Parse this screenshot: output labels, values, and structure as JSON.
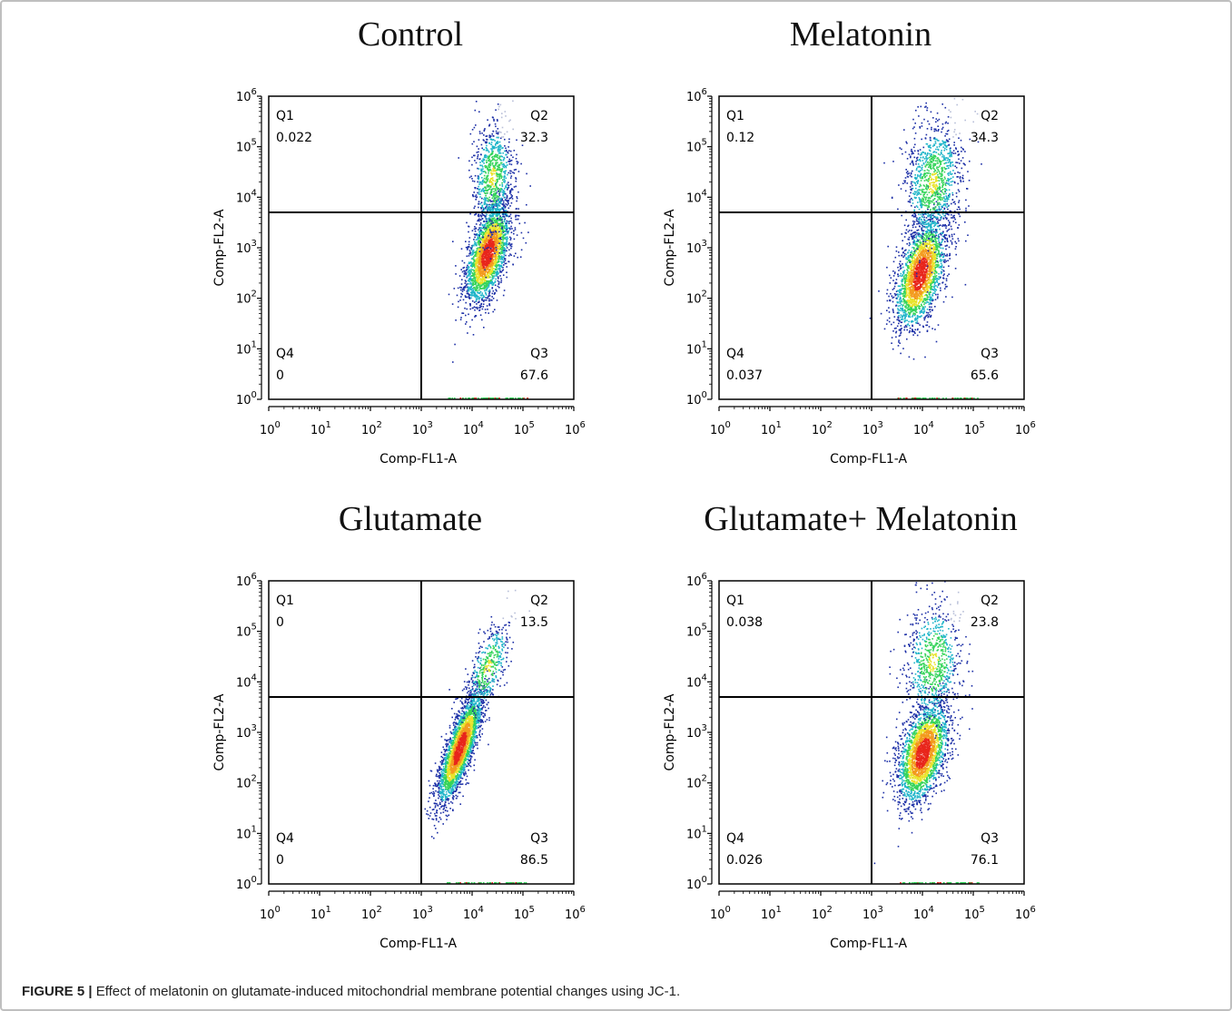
{
  "caption": {
    "label": "FIGURE 5 |",
    "text": "Effect of melatonin on glutamate-induced mitochondrial membrane potential changes using JC-1."
  },
  "chart_data": [
    {
      "type": "scatter",
      "title": "Control",
      "xlabel": "Comp-FL1-A",
      "ylabel": "Comp-FL2-A",
      "x_scale": "log10",
      "y_scale": "log10",
      "xlim": [
        0,
        6
      ],
      "ylim": [
        0,
        6
      ],
      "x_ticks": [
        "10^0",
        "10^1",
        "10^2",
        "10^3",
        "10^4",
        "10^5",
        "10^6"
      ],
      "y_ticks": [
        "10^0",
        "10^1",
        "10^2",
        "10^3",
        "10^4",
        "10^5",
        "10^6"
      ],
      "gate": {
        "x": 3,
        "y": 3.7
      },
      "quadrants": [
        {
          "name": "Q1",
          "value": "0.022"
        },
        {
          "name": "Q2",
          "value": "32.3"
        },
        {
          "name": "Q3",
          "value": "67.6"
        },
        {
          "name": "Q4",
          "value": "0"
        }
      ],
      "clusters": [
        {
          "cx": 4.3,
          "cy": 2.9,
          "sx": 0.22,
          "sy": 0.5,
          "rho": 0.55,
          "n": 2600
        },
        {
          "cx": 4.4,
          "cy": 4.4,
          "sx": 0.2,
          "sy": 0.55,
          "rho": 0.1,
          "n": 900
        }
      ]
    },
    {
      "type": "scatter",
      "title": "Melatonin",
      "xlabel": "Comp-FL1-A",
      "ylabel": "Comp-FL2-A",
      "x_scale": "log10",
      "y_scale": "log10",
      "xlim": [
        0,
        6
      ],
      "ylim": [
        0,
        6
      ],
      "x_ticks": [
        "10^0",
        "10^1",
        "10^2",
        "10^3",
        "10^4",
        "10^5",
        "10^6"
      ],
      "y_ticks": [
        "10^0",
        "10^1",
        "10^2",
        "10^3",
        "10^4",
        "10^5",
        "10^6"
      ],
      "gate": {
        "x": 3,
        "y": 3.7
      },
      "quadrants": [
        {
          "name": "Q1",
          "value": "0.12"
        },
        {
          "name": "Q2",
          "value": "34.3"
        },
        {
          "name": "Q3",
          "value": "65.6"
        },
        {
          "name": "Q4",
          "value": "0.037"
        }
      ],
      "clusters": [
        {
          "cx": 3.95,
          "cy": 2.5,
          "sx": 0.25,
          "sy": 0.55,
          "rho": 0.5,
          "n": 2400
        },
        {
          "cx": 4.2,
          "cy": 4.3,
          "sx": 0.28,
          "sy": 0.6,
          "rho": 0.2,
          "n": 1100
        }
      ]
    },
    {
      "type": "scatter",
      "title": "Glutamate",
      "xlabel": "Comp-FL1-A",
      "ylabel": "Comp-FL2-A",
      "x_scale": "log10",
      "y_scale": "log10",
      "xlim": [
        0,
        6
      ],
      "ylim": [
        0,
        6
      ],
      "x_ticks": [
        "10^0",
        "10^1",
        "10^2",
        "10^3",
        "10^4",
        "10^5",
        "10^6"
      ],
      "y_ticks": [
        "10^0",
        "10^1",
        "10^2",
        "10^3",
        "10^4",
        "10^5",
        "10^6"
      ],
      "gate": {
        "x": 3,
        "y": 3.7
      },
      "quadrants": [
        {
          "name": "Q1",
          "value": "0"
        },
        {
          "name": "Q2",
          "value": "13.5"
        },
        {
          "name": "Q3",
          "value": "86.5"
        },
        {
          "name": "Q4",
          "value": "0"
        }
      ],
      "clusters": [
        {
          "cx": 3.75,
          "cy": 2.7,
          "sx": 0.22,
          "sy": 0.55,
          "rho": 0.8,
          "n": 3000
        },
        {
          "cx": 4.3,
          "cy": 4.3,
          "sx": 0.22,
          "sy": 0.45,
          "rho": 0.6,
          "n": 450
        }
      ]
    },
    {
      "type": "scatter",
      "title": "Glutamate+ Melatonin",
      "xlabel": "Comp-FL1-A",
      "ylabel": "Comp-FL2-A",
      "x_scale": "log10",
      "y_scale": "log10",
      "xlim": [
        0,
        6
      ],
      "ylim": [
        0,
        6
      ],
      "x_ticks": [
        "10^0",
        "10^1",
        "10^2",
        "10^3",
        "10^4",
        "10^5",
        "10^6"
      ],
      "y_ticks": [
        "10^0",
        "10^1",
        "10^2",
        "10^3",
        "10^4",
        "10^5",
        "10^6"
      ],
      "gate": {
        "x": 3,
        "y": 3.7
      },
      "quadrants": [
        {
          "name": "Q1",
          "value": "0.038"
        },
        {
          "name": "Q2",
          "value": "23.8"
        },
        {
          "name": "Q3",
          "value": "76.1"
        },
        {
          "name": "Q4",
          "value": "0.026"
        }
      ],
      "clusters": [
        {
          "cx": 4.0,
          "cy": 2.6,
          "sx": 0.25,
          "sy": 0.5,
          "rho": 0.45,
          "n": 2600
        },
        {
          "cx": 4.2,
          "cy": 4.4,
          "sx": 0.28,
          "sy": 0.6,
          "rho": 0.15,
          "n": 800
        }
      ]
    }
  ]
}
